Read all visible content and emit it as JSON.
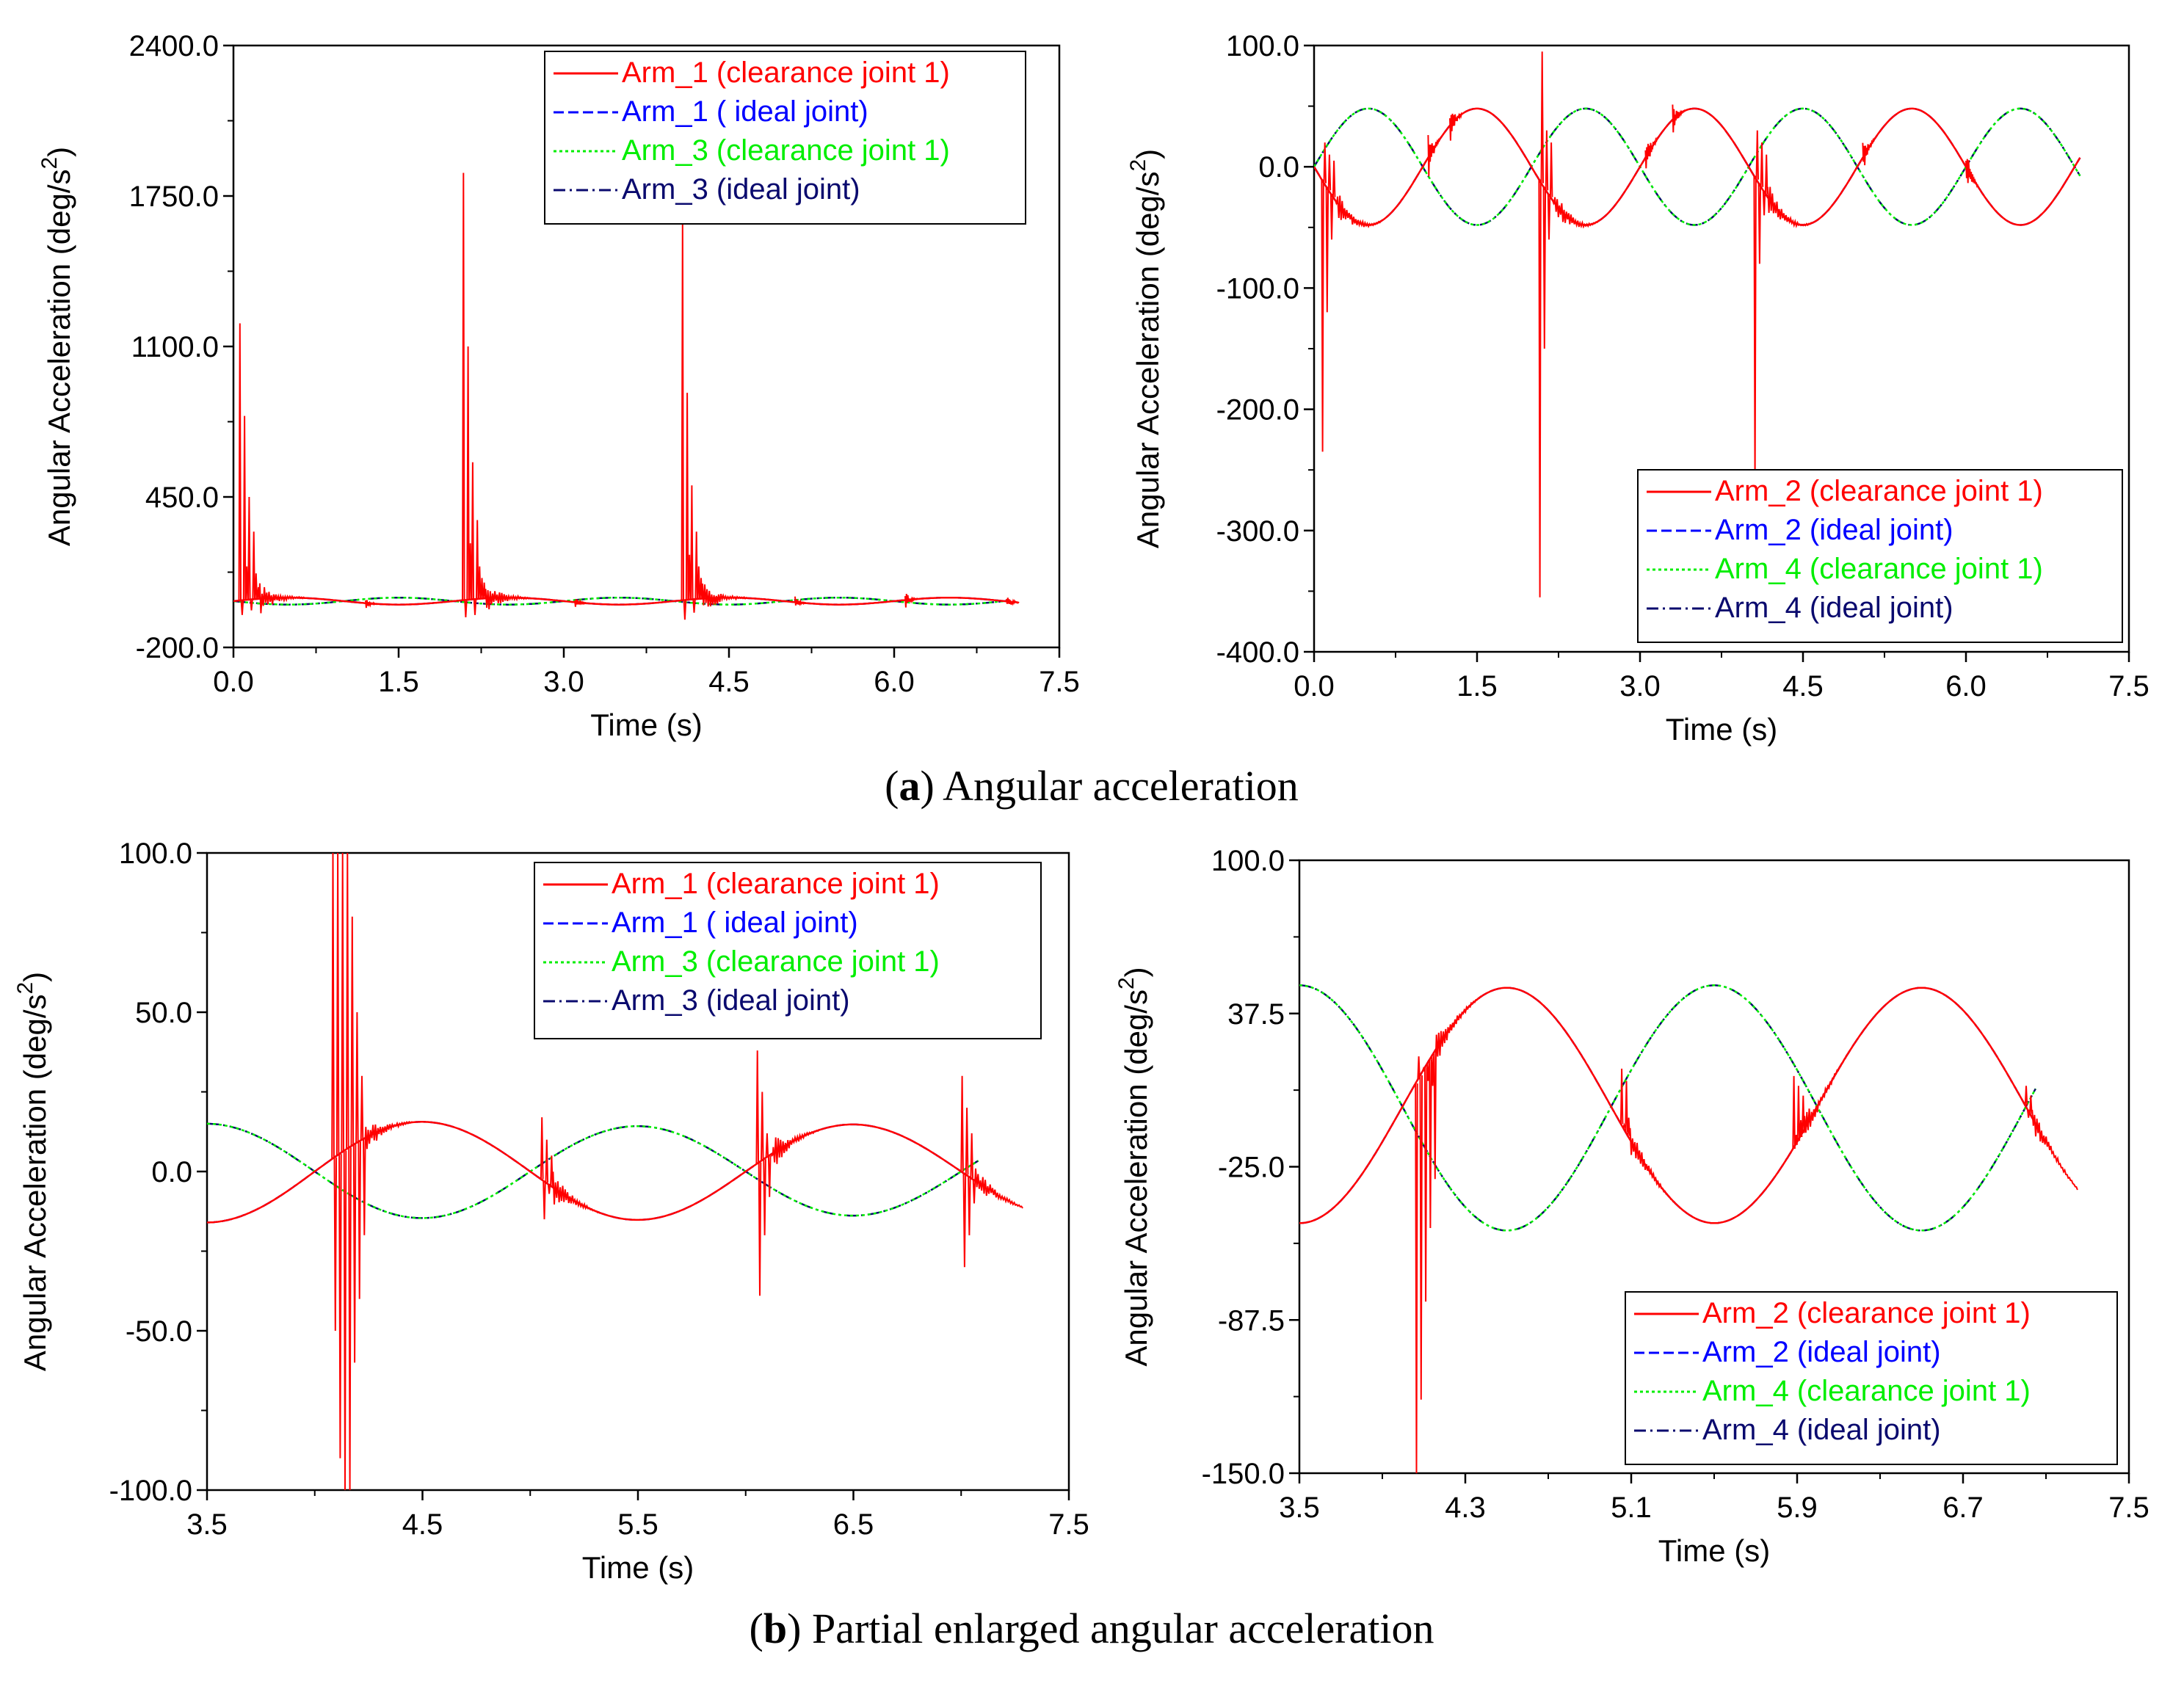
{
  "figure": {
    "caption_a_letter": "a",
    "caption_a_text": " Angular acceleration",
    "caption_b_letter": "b",
    "caption_b_text": " Partial enlarged angular acceleration"
  },
  "colors": {
    "red": "#ff0000",
    "blue": "#0000ff",
    "green": "#00ee00",
    "navy": "#0a0a6e",
    "axis": "#000000"
  },
  "chart_data": [
    {
      "id": "a-left",
      "type": "line",
      "xlabel": "Time (s)",
      "ylabel": "Angular Acceleration (deg/s",
      "ylabel_sup": "2",
      "ylabel_close": ")",
      "xlim": [
        0,
        7.5
      ],
      "ylim": [
        -200,
        2400
      ],
      "xticks": [
        "0.0",
        "1.5",
        "3.0",
        "4.5",
        "6.0",
        "7.5"
      ],
      "yticks": [
        "-200.0",
        "450.0",
        "1100.0",
        "1750.0",
        "2400.0"
      ],
      "legend_position": "top-right",
      "legend": [
        "Arm_1 (clearance joint 1)",
        "Arm_1 ( ideal joint)",
        "Arm_3 (clearance joint 1)",
        "Arm_3 (ideal joint)"
      ],
      "legend_colors": [
        "#ff0000",
        "#0000ff",
        "#00ee00",
        "#0a0a6e"
      ],
      "series": [
        {
          "name": "Arm_3 (ideal joint)",
          "kind": "sine",
          "amplitude": 15,
          "period": 2.0,
          "phase": 3.1416,
          "offset": 0,
          "x_end": 7.05,
          "color": "#0a0a6e",
          "dash": "16 6 3 6"
        },
        {
          "name": "Arm_3 (clearance joint 1)",
          "kind": "sine",
          "amplitude": 15,
          "period": 2.0,
          "phase": 3.1416,
          "offset": 0,
          "x_end": 7.05,
          "color": "#00ee00",
          "dash": "4 4"
        },
        {
          "name": "Arm_1 ( ideal joint)",
          "kind": "sine",
          "amplitude": 15,
          "period": 2.0,
          "phase": 0,
          "offset": 0,
          "x_end": 7.05,
          "color": "#0000ff",
          "dash": "14 6"
        },
        {
          "name": "Arm_1 (clearance joint 1)",
          "kind": "impact",
          "amplitude": 15,
          "period": 2.0,
          "phase": 0,
          "offset": 0,
          "x_end": 7.05,
          "color": "#ff0000",
          "spikes": [
            {
              "t": 0.05,
              "peaks": [
                1200,
                -60,
                800,
                150,
                450,
                -40,
                300,
                120,
                60
              ]
            },
            {
              "t": 2.08,
              "peaks": [
                1850,
                -70,
                1100,
                250,
                600,
                -60,
                350,
                150,
                100,
                80
              ]
            },
            {
              "t": 4.07,
              "peaks": [
                1650,
                -80,
                900,
                200,
                500,
                -50,
                300,
                150,
                100
              ]
            }
          ],
          "small": [
            {
              "t": 1.2,
              "amp": 20
            },
            {
              "t": 3.1,
              "amp": 20
            },
            {
              "t": 5.1,
              "amp": 20
            },
            {
              "t": 6.1,
              "amp": 30
            },
            {
              "t": 7.02,
              "amp": 30
            }
          ]
        }
      ]
    },
    {
      "id": "a-right",
      "type": "line",
      "xlabel": "Time (s)",
      "ylabel": "Angular Acceleration (deg/s",
      "ylabel_sup": "2",
      "ylabel_close": ")",
      "xlim": [
        0,
        7.5
      ],
      "ylim": [
        -400,
        100
      ],
      "xticks": [
        "0.0",
        "1.5",
        "3.0",
        "4.5",
        "6.0",
        "7.5"
      ],
      "yticks": [
        "-400.0",
        "-300.0",
        "-200.0",
        "-100.0",
        "0.0",
        "100.0"
      ],
      "legend_position": "bottom-right",
      "legend": [
        "Arm_2 (clearance joint 1)",
        "Arm_2 (ideal joint)",
        "Arm_4 (clearance joint 1)",
        "Arm_4 (ideal joint)"
      ],
      "legend_colors": [
        "#ff0000",
        "#0000ff",
        "#00ee00",
        "#0a0a6e"
      ],
      "series": [
        {
          "name": "Arm_4 (ideal joint)",
          "kind": "sine",
          "amplitude": 48,
          "period": 2.0,
          "phase": 0,
          "offset": 0,
          "x_end": 7.05,
          "color": "#0a0a6e",
          "dash": "16 6 3 6"
        },
        {
          "name": "Arm_4 (clearance joint 1)",
          "kind": "sine",
          "amplitude": 48,
          "period": 2.0,
          "phase": 0,
          "offset": 0,
          "x_end": 7.05,
          "color": "#00ee00",
          "dash": "4 4"
        },
        {
          "name": "Arm_2 (ideal joint)",
          "kind": "sine",
          "amplitude": 48,
          "period": 2.0,
          "phase": 3.1416,
          "offset": 0,
          "x_end": 7.05,
          "color": "#0000ff",
          "dash": "14 6"
        },
        {
          "name": "Arm_2 (clearance joint 1)",
          "kind": "impact",
          "amplitude": 48,
          "period": 2.0,
          "phase": 3.1416,
          "offset": 0,
          "x_end": 7.05,
          "color": "#ff0000",
          "spikes": [
            {
              "t": 0.07,
              "peaks": [
                -235,
                20,
                -120,
                10,
                -60,
                5,
                -30
              ]
            },
            {
              "t": 2.07,
              "peaks": [
                -355,
                95,
                -150,
                30,
                -60,
                20,
                -30
              ]
            },
            {
              "t": 4.05,
              "peaks": [
                -260,
                30,
                -80,
                20,
                -40,
                10
              ]
            }
          ],
          "small": [
            {
              "t": 1.05,
              "amp": 15
            },
            {
              "t": 1.25,
              "amp": 15
            },
            {
              "t": 3.05,
              "amp": 15
            },
            {
              "t": 3.3,
              "amp": 10
            },
            {
              "t": 5.05,
              "amp": 12
            },
            {
              "t": 6.0,
              "amp": 15
            }
          ]
        }
      ]
    },
    {
      "id": "b-left",
      "type": "line",
      "xlabel": "Time (s)",
      "ylabel": "Angular Acceleration (deg/s",
      "ylabel_sup": "2",
      "ylabel_close": ")",
      "xlim": [
        3.5,
        7.5
      ],
      "ylim": [
        -100,
        100
      ],
      "xticks": [
        "3.5",
        "4.5",
        "5.5",
        "6.5",
        "7.5"
      ],
      "yticks": [
        "-100.0",
        "-50.0",
        "0.0",
        "50.0",
        "100.0"
      ],
      "legend_position": "top-right",
      "legend": [
        "Arm_1 (clearance joint 1)",
        "Arm_1 ( ideal joint)",
        "Arm_3 (clearance joint 1)",
        "Arm_3 (ideal joint)"
      ],
      "legend_colors": [
        "#ff0000",
        "#0000ff",
        "#00ee00",
        "#0a0a6e"
      ],
      "series": [
        {
          "name": "Arm_3 (ideal joint)",
          "kind": "sine",
          "amplitude": 15,
          "period": 2.0,
          "phase": 3.1416,
          "offset": 0,
          "x_end": 7.08,
          "decay": 0.085,
          "color": "#0a0a6e",
          "dash": "16 6 3 6"
        },
        {
          "name": "Arm_3 (clearance joint 1)",
          "kind": "sine",
          "amplitude": 15,
          "period": 2.0,
          "phase": 3.1416,
          "offset": 0,
          "x_end": 7.08,
          "decay": 0.085,
          "color": "#00ee00",
          "dash": "4 4"
        },
        {
          "name": "Arm_1 ( ideal joint)",
          "kind": "sine",
          "amplitude": 16,
          "period": 2.0,
          "phase": 0,
          "offset": 0,
          "x_end": 7.08,
          "decay": 0.085,
          "color": "#0000ff",
          "dash": "14 6"
        },
        {
          "name": "Arm_1 (clearance joint 1)",
          "kind": "impact",
          "amplitude": 16,
          "period": 2.0,
          "phase": 0,
          "offset": 0,
          "x_end": 7.08,
          "decay": 0.085,
          "color": "#ff0000",
          "spikes": [
            {
              "t": 4.08,
              "peaks": [
                100,
                -50,
                100,
                -90,
                100,
                -100,
                100,
                -100,
                80,
                -60,
                50,
                -40,
                30,
                -20
              ]
            },
            {
              "t": 5.05,
              "peaks": [
                17,
                -15,
                10,
                -7,
                5
              ]
            },
            {
              "t": 6.05,
              "peaks": [
                38,
                -39,
                25,
                -20,
                12,
                -8,
                5
              ]
            },
            {
              "t": 7.0,
              "peaks": [
                30,
                -30,
                20,
                -20,
                12,
                -10
              ]
            }
          ],
          "small": []
        }
      ]
    },
    {
      "id": "b-right",
      "type": "line",
      "xlabel": "Time (s)",
      "ylabel": "Angular Acceleration (deg/s",
      "ylabel_sup": "2",
      "ylabel_close": ")",
      "xlim": [
        3.5,
        7.5
      ],
      "ylim": [
        -150,
        100
      ],
      "xticks": [
        "3.5",
        "4.3",
        "5.1",
        "5.9",
        "6.7",
        "7.5"
      ],
      "yticks": [
        "-150.0",
        "-87.5",
        "-25.0",
        "37.5",
        "100.0"
      ],
      "legend_position": "bottom-right",
      "legend": [
        "Arm_2 (clearance joint 1)",
        "Arm_2 (ideal joint)",
        "Arm_4 (clearance joint 1)",
        "Arm_4 (ideal joint)"
      ],
      "legend_colors": [
        "#ff0000",
        "#0000ff",
        "#00ee00",
        "#0a0a6e"
      ],
      "series": [
        {
          "name": "Arm_4 (ideal joint)",
          "kind": "sine",
          "amplitude": 50,
          "period": 2.0,
          "phase": 3.1416,
          "offset": -1,
          "x_end": 7.05,
          "color": "#0a0a6e",
          "dash": "16 6 3 6"
        },
        {
          "name": "Arm_4 (clearance joint 1)",
          "kind": "sine",
          "amplitude": 50,
          "period": 2.0,
          "phase": 3.1416,
          "offset": -1,
          "x_end": 7.05,
          "color": "#00ee00",
          "dash": "4 4"
        },
        {
          "name": "Arm_2 (ideal joint)",
          "kind": "sine",
          "amplitude": 48,
          "period": 2.0,
          "phase": 0,
          "offset": 0,
          "x_end": 7.05,
          "color": "#0000ff",
          "dash": "14 6"
        },
        {
          "name": "Arm_2 (clearance joint 1)",
          "kind": "impact",
          "amplitude": 48,
          "period": 2.0,
          "phase": 0,
          "offset": 0,
          "x_end": 7.05,
          "color": "#ff0000",
          "spikes": [
            {
              "t": 4.06,
              "peaks": [
                -150,
                20,
                -120,
                15,
                -80,
                10,
                -50,
                8,
                -30
              ]
            },
            {
              "t": 5.05,
              "peaks": [
                15,
                -8,
                10,
                -5
              ]
            },
            {
              "t": 5.88,
              "peaks": [
                12,
                -12,
                8,
                -6,
                4
              ]
            },
            {
              "t": 7.0,
              "peaks": [
                8,
                -5,
                4
              ]
            }
          ],
          "small": []
        }
      ]
    }
  ]
}
